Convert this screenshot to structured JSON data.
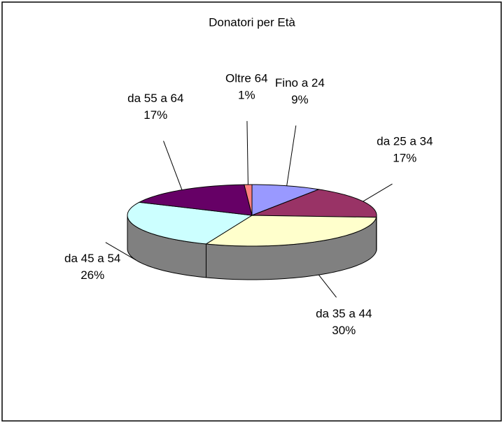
{
  "chart_data": {
    "type": "pie",
    "title": "Donatori per Età",
    "categories": [
      "Fino a 24",
      "da 25 a 34",
      "da 35 a 44",
      "da 45 a 54",
      "da 55 a 64",
      "Oltre 64"
    ],
    "values": [
      9,
      17,
      30,
      26,
      17,
      1
    ],
    "value_labels": [
      "9%",
      "17%",
      "30%",
      "26%",
      "17%",
      "1%"
    ],
    "colors": [
      "#9999ff",
      "#993366",
      "#ffffcc",
      "#ccffff",
      "#660066",
      "#ff8080"
    ]
  }
}
